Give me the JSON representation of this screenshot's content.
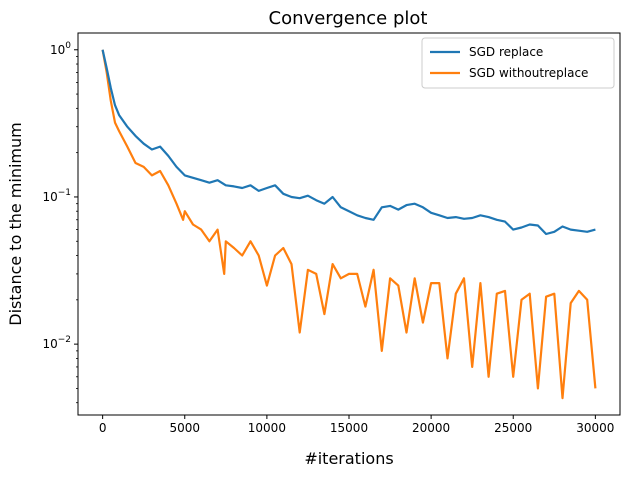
{
  "chart_data": {
    "type": "line",
    "title": "Convergence plot",
    "xlabel": "#iterations",
    "ylabel": "Distance to the minimum",
    "xlim": [
      -1500,
      31500
    ],
    "ylim": [
      0.0033,
      1.3
    ],
    "yscale": "log",
    "grid": false,
    "legend_position": "top-right",
    "x_ticks": [
      {
        "value": 0,
        "label": "0"
      },
      {
        "value": 5000,
        "label": "5000"
      },
      {
        "value": 10000,
        "label": "10000"
      },
      {
        "value": 15000,
        "label": "15000"
      },
      {
        "value": 20000,
        "label": "20000"
      },
      {
        "value": 25000,
        "label": "25000"
      },
      {
        "value": 30000,
        "label": "30000"
      }
    ],
    "y_ticks": [
      {
        "value": 1,
        "base": "10",
        "exp": "0"
      },
      {
        "value": 0.1,
        "base": "10",
        "exp": "−1"
      },
      {
        "value": 0.01,
        "base": "10",
        "exp": "−2"
      }
    ],
    "series": [
      {
        "name": "SGD replace",
        "color": "#1f77b4",
        "x": [
          0,
          250,
          500,
          750,
          1000,
          1500,
          2000,
          2500,
          3000,
          3500,
          4000,
          4500,
          5000,
          5500,
          6000,
          6500,
          7000,
          7500,
          8000,
          8500,
          9000,
          9500,
          10000,
          10500,
          11000,
          11500,
          12000,
          12500,
          13000,
          13500,
          14000,
          14500,
          15000,
          15500,
          16000,
          16500,
          17000,
          17500,
          18000,
          18500,
          19000,
          19500,
          20000,
          20500,
          21000,
          21500,
          22000,
          22500,
          23000,
          23500,
          24000,
          24500,
          25000,
          25500,
          26000,
          26500,
          27000,
          27500,
          28000,
          28500,
          29000,
          29500,
          30000
        ],
        "y": [
          1.0,
          0.75,
          0.55,
          0.42,
          0.36,
          0.3,
          0.26,
          0.23,
          0.21,
          0.22,
          0.19,
          0.16,
          0.14,
          0.135,
          0.13,
          0.125,
          0.13,
          0.12,
          0.118,
          0.115,
          0.12,
          0.11,
          0.115,
          0.12,
          0.105,
          0.1,
          0.098,
          0.102,
          0.095,
          0.09,
          0.1,
          0.085,
          0.08,
          0.075,
          0.072,
          0.07,
          0.085,
          0.087,
          0.082,
          0.088,
          0.09,
          0.085,
          0.078,
          0.075,
          0.072,
          0.073,
          0.071,
          0.072,
          0.075,
          0.073,
          0.07,
          0.068,
          0.06,
          0.062,
          0.065,
          0.064,
          0.056,
          0.058,
          0.063,
          0.06,
          0.059,
          0.058,
          0.06
        ]
      },
      {
        "name": "SGD withoutreplace",
        "color": "#ff7f0e",
        "x": [
          0,
          250,
          500,
          750,
          1000,
          1500,
          2000,
          2500,
          3000,
          3500,
          4000,
          4500,
          4900,
          5000,
          5500,
          6000,
          6500,
          7000,
          7400,
          7500,
          8000,
          8500,
          9000,
          9500,
          10000,
          10500,
          11000,
          11500,
          12000,
          12500,
          13000,
          13500,
          14000,
          14500,
          15000,
          15500,
          16000,
          16500,
          17000,
          17500,
          18000,
          18500,
          19000,
          19500,
          20000,
          20500,
          21000,
          21500,
          22000,
          22500,
          23000,
          23500,
          24000,
          24500,
          25000,
          25500,
          26000,
          26500,
          27000,
          27500,
          28000,
          28500,
          29000,
          29500,
          30000
        ],
        "y": [
          1.0,
          0.7,
          0.45,
          0.32,
          0.28,
          0.22,
          0.17,
          0.16,
          0.14,
          0.15,
          0.12,
          0.09,
          0.07,
          0.08,
          0.065,
          0.06,
          0.05,
          0.06,
          0.03,
          0.05,
          0.045,
          0.04,
          0.05,
          0.04,
          0.025,
          0.04,
          0.045,
          0.035,
          0.012,
          0.032,
          0.03,
          0.016,
          0.035,
          0.028,
          0.03,
          0.03,
          0.018,
          0.032,
          0.009,
          0.028,
          0.025,
          0.012,
          0.028,
          0.014,
          0.026,
          0.026,
          0.008,
          0.022,
          0.028,
          0.007,
          0.026,
          0.006,
          0.022,
          0.023,
          0.006,
          0.02,
          0.022,
          0.005,
          0.021,
          0.022,
          0.0043,
          0.019,
          0.023,
          0.02,
          0.005
        ]
      }
    ]
  }
}
